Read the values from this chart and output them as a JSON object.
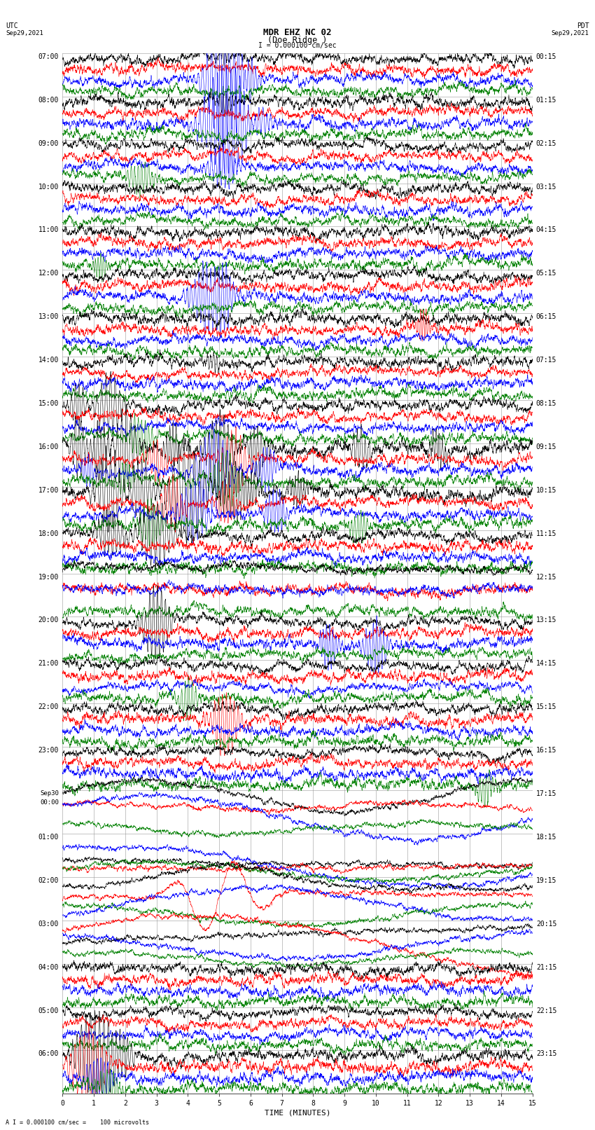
{
  "title_line1": "MDR EHZ NC 02",
  "title_line2": "(Doe Ridge )",
  "scale_text": "I = 0.000100 cm/sec",
  "footer_text": "A I = 0.000100 cm/sec =    100 microvolts",
  "utc_label": "UTC",
  "utc_date": "Sep29,2021",
  "pdt_label": "PDT",
  "pdt_date": "Sep29,2021",
  "xlabel": "TIME (MINUTES)",
  "left_times": [
    "07:00",
    "08:00",
    "09:00",
    "10:00",
    "11:00",
    "12:00",
    "13:00",
    "14:00",
    "15:00",
    "16:00",
    "17:00",
    "18:00",
    "19:00",
    "20:00",
    "21:00",
    "22:00",
    "23:00",
    "Sep30\n00:00",
    "01:00",
    "02:00",
    "03:00",
    "04:00",
    "05:00",
    "06:00"
  ],
  "right_times": [
    "00:15",
    "01:15",
    "02:15",
    "03:15",
    "04:15",
    "05:15",
    "06:15",
    "07:15",
    "08:15",
    "09:15",
    "10:15",
    "11:15",
    "12:15",
    "13:15",
    "14:15",
    "15:15",
    "16:15",
    "17:15",
    "18:15",
    "19:15",
    "20:15",
    "21:15",
    "22:15",
    "23:15"
  ],
  "num_rows": 24,
  "traces_per_row": 4,
  "colors": [
    "black",
    "red",
    "blue",
    "green"
  ],
  "xmin": 0,
  "xmax": 15,
  "bg_color": "#ffffff",
  "grid_color": "#999999",
  "title_fontsize": 9,
  "label_fontsize": 8,
  "tick_fontsize": 7,
  "seed": 42
}
